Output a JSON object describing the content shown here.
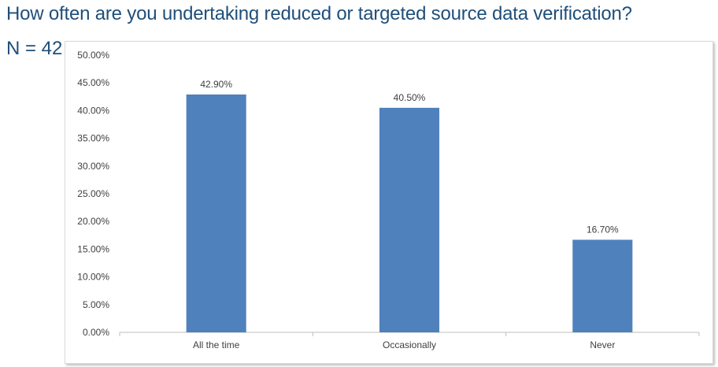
{
  "title": "How often are you undertaking reduced or targeted source data verification?",
  "sample_size_label": "N = 42",
  "colors": {
    "bar": "#4f81bd",
    "title": "#1f4f7a",
    "axis_text": "#404040",
    "axis_line": "#bfbfbf"
  },
  "chart_data": {
    "type": "bar",
    "categories": [
      "All the time",
      "Occasionally",
      "Never"
    ],
    "values": [
      42.9,
      40.5,
      16.7
    ],
    "data_labels": [
      "42.90%",
      "40.50%",
      "16.70%"
    ],
    "ylim": [
      0,
      50
    ],
    "yticks": [
      0,
      5,
      10,
      15,
      20,
      25,
      30,
      35,
      40,
      45,
      50
    ],
    "ytick_labels": [
      "0.00%",
      "5.00%",
      "10.00%",
      "15.00%",
      "20.00%",
      "25.00%",
      "30.00%",
      "35.00%",
      "40.00%",
      "45.00%",
      "50.00%"
    ],
    "grid": false,
    "legend": "none"
  }
}
